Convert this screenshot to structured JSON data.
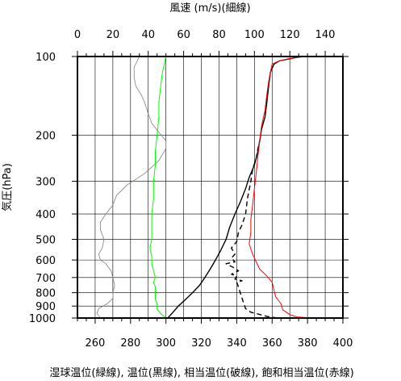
{
  "chart_data": {
    "type": "line",
    "title_top": "風速 (m/s)(細線)",
    "ylabel": "気圧(hPa)",
    "xlabel": "湿球温位(緑線), 温位(黒線), 相当温位(破線), 飽和相当温位(赤線)",
    "x_bottom": {
      "lim": [
        250,
        400
      ],
      "ticks": [
        260,
        280,
        300,
        320,
        340,
        360,
        380,
        400
      ]
    },
    "x_top": {
      "lim": [
        0,
        150
      ],
      "ticks": [
        0,
        20,
        40,
        60,
        80,
        100,
        120,
        140
      ]
    },
    "y": {
      "scale": "log",
      "lim": [
        1000,
        100
      ],
      "ticks": [
        100,
        200,
        300,
        400,
        500,
        600,
        700,
        800,
        900,
        1000
      ]
    },
    "grid": true,
    "series": [
      {
        "key": "wind",
        "axis": "top",
        "color": "#808080",
        "style": "solid",
        "width": 0.8,
        "points": [
          [
            13,
            1000
          ],
          [
            11,
            960
          ],
          [
            12,
            920
          ],
          [
            17,
            880
          ],
          [
            20,
            840
          ],
          [
            20,
            800
          ],
          [
            21,
            750
          ],
          [
            20,
            700
          ],
          [
            19,
            660
          ],
          [
            16,
            620
          ],
          [
            13,
            600
          ],
          [
            12,
            570
          ],
          [
            14,
            540
          ],
          [
            15,
            500
          ],
          [
            13,
            460
          ],
          [
            13,
            430
          ],
          [
            16,
            400
          ],
          [
            20,
            370
          ],
          [
            22,
            340
          ],
          [
            28,
            310
          ],
          [
            38,
            280
          ],
          [
            46,
            250
          ],
          [
            50,
            225
          ],
          [
            50,
            210
          ],
          [
            46,
            195
          ],
          [
            42,
            180
          ],
          [
            40,
            165
          ],
          [
            38,
            150
          ],
          [
            36,
            140
          ],
          [
            33,
            130
          ],
          [
            32,
            120
          ],
          [
            32,
            110
          ],
          [
            35,
            100
          ]
        ]
      },
      {
        "key": "wet_bulb_theta",
        "axis": "bottom",
        "color": "#00ff00",
        "style": "solid",
        "width": 1,
        "points": [
          [
            300,
            1000
          ],
          [
            297,
            960
          ],
          [
            295,
            925
          ],
          [
            295,
            880
          ],
          [
            294,
            850
          ],
          [
            294,
            800
          ],
          [
            294,
            760
          ],
          [
            293,
            730
          ],
          [
            294,
            700
          ],
          [
            293,
            660
          ],
          [
            292,
            620
          ],
          [
            292,
            580
          ],
          [
            291,
            540
          ],
          [
            292,
            500
          ],
          [
            292,
            460
          ],
          [
            292,
            430
          ],
          [
            292,
            400
          ],
          [
            293,
            350
          ],
          [
            293,
            300
          ],
          [
            294,
            260
          ],
          [
            294,
            230
          ],
          [
            295,
            200
          ],
          [
            296,
            170
          ],
          [
            296,
            150
          ],
          [
            297,
            130
          ],
          [
            298,
            115
          ],
          [
            300,
            100
          ]
        ]
      },
      {
        "key": "theta",
        "axis": "bottom",
        "color": "#000000",
        "style": "solid",
        "width": 1.4,
        "points": [
          [
            301,
            1000
          ],
          [
            304,
            950
          ],
          [
            307,
            900
          ],
          [
            311,
            850
          ],
          [
            315,
            800
          ],
          [
            319,
            750
          ],
          [
            322,
            700
          ],
          [
            325,
            650
          ],
          [
            328,
            600
          ],
          [
            331,
            550
          ],
          [
            334,
            500
          ],
          [
            336,
            450
          ],
          [
            339,
            400
          ],
          [
            342,
            360
          ],
          [
            345,
            320
          ],
          [
            347,
            290
          ],
          [
            350,
            260
          ],
          [
            352,
            230
          ],
          [
            353,
            210
          ],
          [
            354,
            190
          ],
          [
            356,
            170
          ],
          [
            357,
            150
          ],
          [
            358,
            130
          ],
          [
            359,
            115
          ],
          [
            361,
            107
          ],
          [
            364,
            104
          ],
          [
            373,
            101
          ],
          [
            377,
            100
          ]
        ]
      },
      {
        "key": "theta_e",
        "axis": "bottom",
        "color": "#000000",
        "style": "dashed",
        "width": 1.4,
        "points": [
          [
            363,
            1000
          ],
          [
            357,
            985
          ],
          [
            352,
            965
          ],
          [
            348,
            950
          ],
          [
            345,
            920
          ],
          [
            344,
            880
          ],
          [
            343,
            840
          ],
          [
            342,
            800
          ],
          [
            341,
            760
          ],
          [
            340,
            730
          ],
          [
            343,
            720
          ],
          [
            339,
            710
          ],
          [
            340,
            690
          ],
          [
            337,
            680
          ],
          [
            341,
            660
          ],
          [
            338,
            640
          ],
          [
            334,
            620
          ],
          [
            339,
            610
          ],
          [
            337,
            590
          ],
          [
            339,
            570
          ],
          [
            337,
            540
          ],
          [
            340,
            510
          ],
          [
            341,
            470
          ],
          [
            343,
            440
          ],
          [
            345,
            400
          ],
          [
            346,
            350
          ],
          [
            348,
            300
          ],
          [
            349,
            270
          ],
          [
            351,
            245
          ],
          [
            352,
            225
          ],
          [
            353,
            210
          ]
        ]
      },
      {
        "key": "saturated_theta_e",
        "axis": "bottom",
        "color": "#ff0000",
        "style": "solid",
        "width": 1,
        "points": [
          [
            383,
            1000
          ],
          [
            374,
            990
          ],
          [
            370,
            970
          ],
          [
            366,
            930
          ],
          [
            365,
            880
          ],
          [
            362,
            830
          ],
          [
            361,
            780
          ],
          [
            360,
            730
          ],
          [
            357,
            690
          ],
          [
            353,
            650
          ],
          [
            351,
            610
          ],
          [
            349,
            570
          ],
          [
            347,
            520
          ],
          [
            348,
            470
          ],
          [
            348,
            420
          ],
          [
            349,
            370
          ],
          [
            350,
            320
          ],
          [
            351,
            280
          ],
          [
            352,
            240
          ],
          [
            353,
            210
          ],
          [
            354,
            185
          ],
          [
            356,
            160
          ],
          [
            357,
            140
          ],
          [
            358,
            125
          ],
          [
            359,
            115
          ],
          [
            360,
            107
          ],
          [
            364,
            104
          ],
          [
            369,
            102
          ],
          [
            374,
            101
          ],
          [
            378,
            100
          ]
        ]
      }
    ]
  }
}
